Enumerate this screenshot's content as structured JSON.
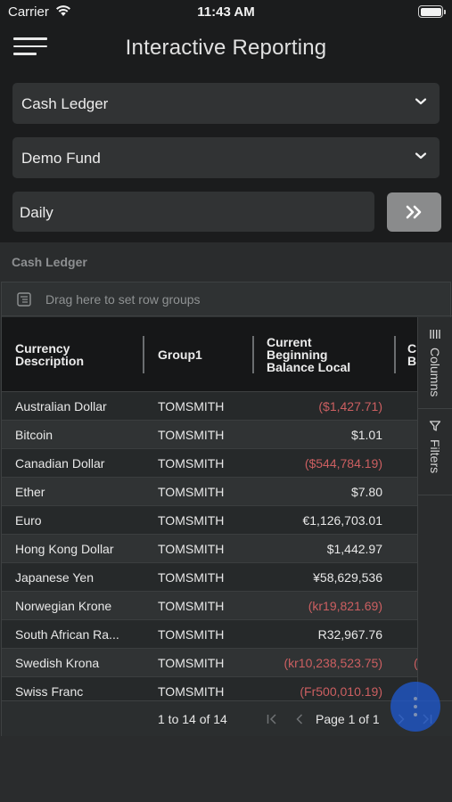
{
  "status_bar": {
    "carrier": "Carrier",
    "time": "11:43 AM"
  },
  "header": {
    "title": "Interactive Reporting",
    "menu_icon": "hamburger-menu-icon"
  },
  "filters": {
    "report": "Cash Ledger",
    "fund": "Demo Fund",
    "period": "Daily",
    "run_icon": "double-chevron-right-icon"
  },
  "section": {
    "title": "Cash Ledger"
  },
  "grid": {
    "row_group_placeholder": "Drag here to set row groups",
    "columns": [
      {
        "l1": "Currency",
        "l2": "Description",
        "l3": ""
      },
      {
        "l1": "Group1",
        "l2": "",
        "l3": ""
      },
      {
        "l1": "Current",
        "l2": "Beginning",
        "l3": "Balance Local"
      },
      {
        "l1": "C",
        "l2": "B",
        "l3": ""
      }
    ],
    "rows": [
      {
        "currency": "Australian Dollar",
        "group": "TOMSMITH",
        "balance": "($1,427.71)",
        "negative": true,
        "next": ""
      },
      {
        "currency": "Bitcoin",
        "group": "TOMSMITH",
        "balance": "$1.01",
        "negative": false,
        "next": ""
      },
      {
        "currency": "Canadian Dollar",
        "group": "TOMSMITH",
        "balance": "($544,784.19)",
        "negative": true,
        "next": ""
      },
      {
        "currency": "Ether",
        "group": "TOMSMITH",
        "balance": "$7.80",
        "negative": false,
        "next": ""
      },
      {
        "currency": "Euro",
        "group": "TOMSMITH",
        "balance": "€1,126,703.01",
        "negative": false,
        "next": ""
      },
      {
        "currency": "Hong Kong Dollar",
        "group": "TOMSMITH",
        "balance": "$1,442.97",
        "negative": false,
        "next": ""
      },
      {
        "currency": "Japanese Yen",
        "group": "TOMSMITH",
        "balance": "¥58,629,536",
        "negative": false,
        "next": ""
      },
      {
        "currency": "Norwegian Krone",
        "group": "TOMSMITH",
        "balance": "(kr19,821.69)",
        "negative": true,
        "next": ""
      },
      {
        "currency": "South African Ra...",
        "group": "TOMSMITH",
        "balance": "R32,967.76",
        "negative": false,
        "next": ""
      },
      {
        "currency": "Swedish Krona",
        "group": "TOMSMITH",
        "balance": "(kr10,238,523.75)",
        "negative": true,
        "next": "("
      },
      {
        "currency": "Swiss Franc",
        "group": "TOMSMITH",
        "balance": "(Fr500,010.19)",
        "negative": true,
        "next": ""
      }
    ],
    "side_panel": {
      "columns": "Columns",
      "filters": "Filters"
    },
    "pagination": {
      "summary": "1 to 14 of 14",
      "page": "Page 1 of 1"
    }
  },
  "colors": {
    "negative": "#cc5f61",
    "fab": "#1e5bd8",
    "background": "#1b1c1d"
  }
}
